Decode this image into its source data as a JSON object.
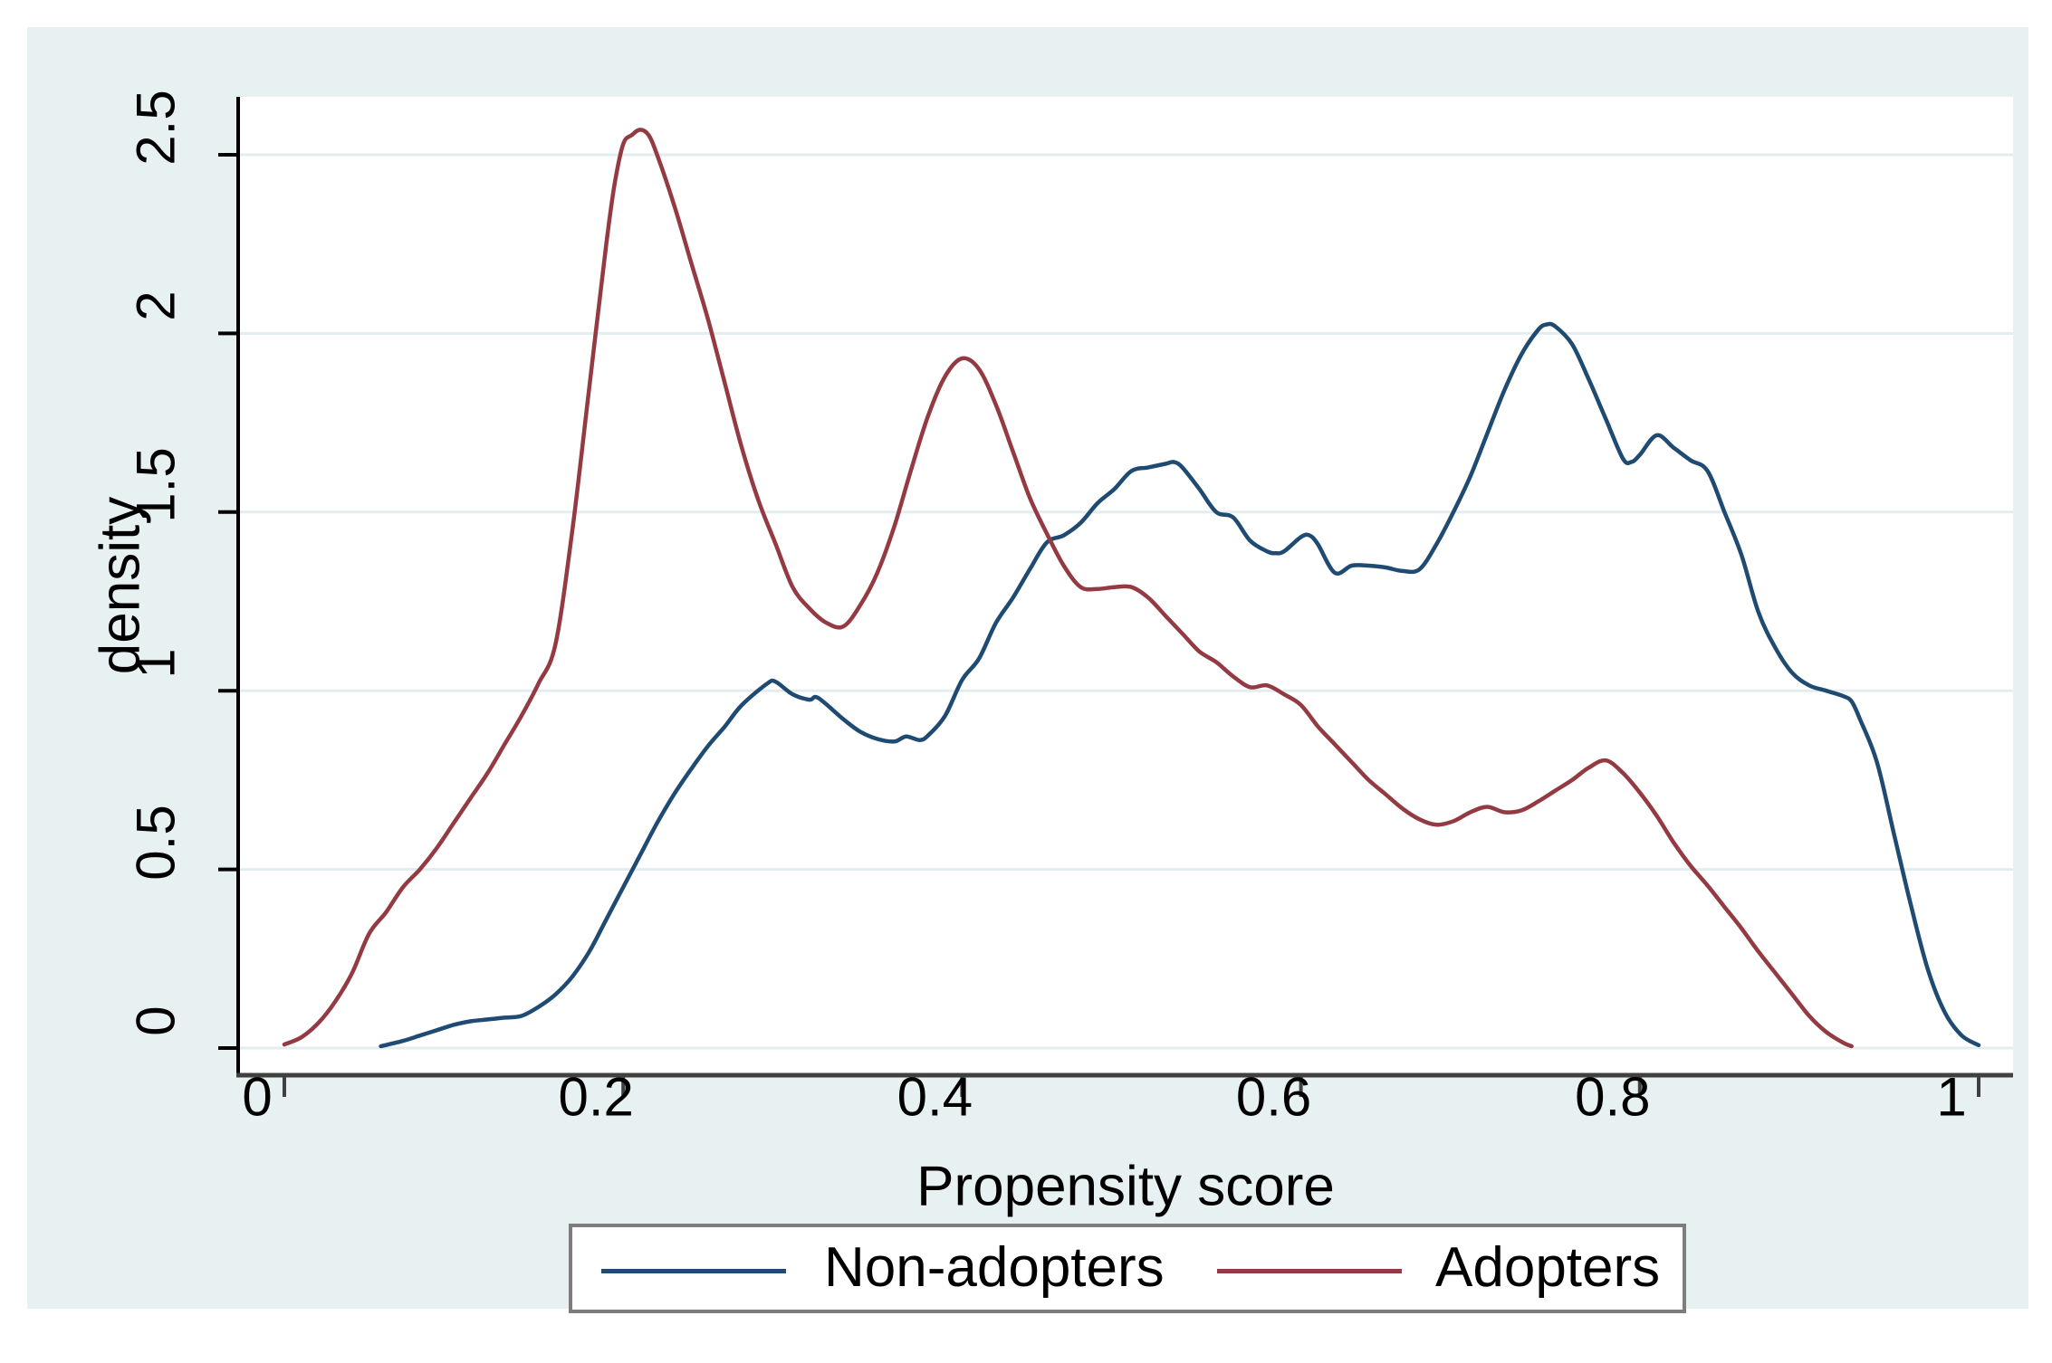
{
  "figure": {
    "xlabel": "Propensity score",
    "ylabel": "density"
  },
  "legend": {
    "items": [
      {
        "label": "Non-adopters",
        "color": "#1f4a72"
      },
      {
        "label": "Adopters",
        "color": "#943a42"
      }
    ]
  },
  "colors": {
    "canvas_bg": "#e8f1f2",
    "plot_bg": "#ffffff",
    "gridline": "#e3edf0",
    "y_axis": "#000000",
    "x_axis": "#404040",
    "text": "#000000",
    "legend_border": "#7d7d7d"
  },
  "chart_data": {
    "type": "line",
    "title": "",
    "xlabel": "Propensity score",
    "ylabel": "density",
    "xlim": [
      0,
      1
    ],
    "ylim": [
      0,
      2.5
    ],
    "grid": true,
    "legend_position": "bottom",
    "x_ticks": {
      "values": [
        0,
        0.2,
        0.4,
        0.6,
        0.8,
        1
      ],
      "labels": [
        "0",
        "0.2",
        "0.4",
        "0.6",
        "0.8",
        "1"
      ]
    },
    "y_ticks": {
      "values": [
        0,
        0.5,
        1,
        1.5,
        2,
        2.5
      ],
      "labels": [
        "0",
        "0.5",
        "1",
        "1.5",
        "2",
        "2.5"
      ]
    },
    "series": [
      {
        "name": "Non-adopters",
        "color": "#1f4a72",
        "points": [
          [
            0.057,
            0.005
          ],
          [
            0.07,
            0.02
          ],
          [
            0.08,
            0.035
          ],
          [
            0.09,
            0.05
          ],
          [
            0.1,
            0.065
          ],
          [
            0.11,
            0.075
          ],
          [
            0.12,
            0.08
          ],
          [
            0.13,
            0.085
          ],
          [
            0.14,
            0.09
          ],
          [
            0.15,
            0.115
          ],
          [
            0.16,
            0.15
          ],
          [
            0.17,
            0.2
          ],
          [
            0.18,
            0.27
          ],
          [
            0.19,
            0.36
          ],
          [
            0.2,
            0.45
          ],
          [
            0.21,
            0.54
          ],
          [
            0.22,
            0.63
          ],
          [
            0.23,
            0.71
          ],
          [
            0.24,
            0.78
          ],
          [
            0.25,
            0.845
          ],
          [
            0.26,
            0.9
          ],
          [
            0.27,
            0.96
          ],
          [
            0.285,
            1.02
          ],
          [
            0.29,
            1.025
          ],
          [
            0.3,
            0.99
          ],
          [
            0.31,
            0.975
          ],
          [
            0.315,
            0.98
          ],
          [
            0.33,
            0.92
          ],
          [
            0.34,
            0.885
          ],
          [
            0.35,
            0.865
          ],
          [
            0.36,
            0.858
          ],
          [
            0.367,
            0.872
          ],
          [
            0.375,
            0.862
          ],
          [
            0.38,
            0.875
          ],
          [
            0.39,
            0.93
          ],
          [
            0.4,
            1.03
          ],
          [
            0.41,
            1.09
          ],
          [
            0.42,
            1.19
          ],
          [
            0.43,
            1.26
          ],
          [
            0.44,
            1.34
          ],
          [
            0.45,
            1.415
          ],
          [
            0.46,
            1.435
          ],
          [
            0.47,
            1.47
          ],
          [
            0.48,
            1.525
          ],
          [
            0.49,
            1.565
          ],
          [
            0.5,
            1.615
          ],
          [
            0.51,
            1.625
          ],
          [
            0.52,
            1.635
          ],
          [
            0.525,
            1.64
          ],
          [
            0.53,
            1.625
          ],
          [
            0.54,
            1.565
          ],
          [
            0.55,
            1.5
          ],
          [
            0.56,
            1.485
          ],
          [
            0.57,
            1.42
          ],
          [
            0.58,
            1.39
          ],
          [
            0.585,
            1.385
          ],
          [
            0.59,
            1.39
          ],
          [
            0.6,
            1.43
          ],
          [
            0.605,
            1.435
          ],
          [
            0.61,
            1.41
          ],
          [
            0.62,
            1.33
          ],
          [
            0.63,
            1.35
          ],
          [
            0.64,
            1.35
          ],
          [
            0.65,
            1.345
          ],
          [
            0.66,
            1.335
          ],
          [
            0.67,
            1.34
          ],
          [
            0.68,
            1.41
          ],
          [
            0.69,
            1.5
          ],
          [
            0.7,
            1.6
          ],
          [
            0.71,
            1.72
          ],
          [
            0.72,
            1.84
          ],
          [
            0.73,
            1.94
          ],
          [
            0.74,
            2.01
          ],
          [
            0.745,
            2.025
          ],
          [
            0.75,
            2.02
          ],
          [
            0.76,
            1.97
          ],
          [
            0.77,
            1.87
          ],
          [
            0.78,
            1.76
          ],
          [
            0.79,
            1.65
          ],
          [
            0.795,
            1.64
          ],
          [
            0.8,
            1.66
          ],
          [
            0.81,
            1.715
          ],
          [
            0.82,
            1.68
          ],
          [
            0.83,
            1.645
          ],
          [
            0.84,
            1.615
          ],
          [
            0.85,
            1.5
          ],
          [
            0.86,
            1.38
          ],
          [
            0.87,
            1.22
          ],
          [
            0.88,
            1.12
          ],
          [
            0.89,
            1.05
          ],
          [
            0.9,
            1.015
          ],
          [
            0.91,
            1.0
          ],
          [
            0.92,
            0.985
          ],
          [
            0.925,
            0.97
          ],
          [
            0.93,
            0.92
          ],
          [
            0.94,
            0.8
          ],
          [
            0.95,
            0.6
          ],
          [
            0.96,
            0.4
          ],
          [
            0.97,
            0.22
          ],
          [
            0.98,
            0.1
          ],
          [
            0.99,
            0.035
          ],
          [
            1.0,
            0.008
          ]
        ]
      },
      {
        "name": "Adopters",
        "color": "#943a42",
        "points": [
          [
            0.0,
            0.01
          ],
          [
            0.01,
            0.03
          ],
          [
            0.02,
            0.07
          ],
          [
            0.03,
            0.13
          ],
          [
            0.04,
            0.21
          ],
          [
            0.05,
            0.32
          ],
          [
            0.06,
            0.38
          ],
          [
            0.07,
            0.45
          ],
          [
            0.08,
            0.5
          ],
          [
            0.09,
            0.56
          ],
          [
            0.1,
            0.63
          ],
          [
            0.11,
            0.7
          ],
          [
            0.12,
            0.77
          ],
          [
            0.13,
            0.85
          ],
          [
            0.14,
            0.93
          ],
          [
            0.15,
            1.02
          ],
          [
            0.16,
            1.13
          ],
          [
            0.17,
            1.45
          ],
          [
            0.18,
            1.85
          ],
          [
            0.19,
            2.25
          ],
          [
            0.195,
            2.42
          ],
          [
            0.2,
            2.53
          ],
          [
            0.205,
            2.555
          ],
          [
            0.21,
            2.57
          ],
          [
            0.215,
            2.555
          ],
          [
            0.22,
            2.5
          ],
          [
            0.23,
            2.36
          ],
          [
            0.24,
            2.2
          ],
          [
            0.25,
            2.04
          ],
          [
            0.26,
            1.86
          ],
          [
            0.27,
            1.68
          ],
          [
            0.28,
            1.53
          ],
          [
            0.29,
            1.41
          ],
          [
            0.3,
            1.29
          ],
          [
            0.31,
            1.23
          ],
          [
            0.32,
            1.19
          ],
          [
            0.33,
            1.18
          ],
          [
            0.34,
            1.24
          ],
          [
            0.35,
            1.33
          ],
          [
            0.36,
            1.46
          ],
          [
            0.37,
            1.62
          ],
          [
            0.38,
            1.77
          ],
          [
            0.39,
            1.88
          ],
          [
            0.4,
            1.93
          ],
          [
            0.41,
            1.9
          ],
          [
            0.42,
            1.8
          ],
          [
            0.43,
            1.67
          ],
          [
            0.44,
            1.54
          ],
          [
            0.45,
            1.44
          ],
          [
            0.46,
            1.35
          ],
          [
            0.47,
            1.29
          ],
          [
            0.48,
            1.285
          ],
          [
            0.49,
            1.29
          ],
          [
            0.5,
            1.29
          ],
          [
            0.51,
            1.26
          ],
          [
            0.52,
            1.21
          ],
          [
            0.53,
            1.16
          ],
          [
            0.54,
            1.11
          ],
          [
            0.55,
            1.08
          ],
          [
            0.56,
            1.04
          ],
          [
            0.57,
            1.01
          ],
          [
            0.58,
            1.015
          ],
          [
            0.59,
            0.99
          ],
          [
            0.6,
            0.96
          ],
          [
            0.61,
            0.9
          ],
          [
            0.62,
            0.85
          ],
          [
            0.63,
            0.8
          ],
          [
            0.64,
            0.75
          ],
          [
            0.65,
            0.71
          ],
          [
            0.66,
            0.67
          ],
          [
            0.67,
            0.64
          ],
          [
            0.68,
            0.625
          ],
          [
            0.69,
            0.635
          ],
          [
            0.7,
            0.66
          ],
          [
            0.71,
            0.675
          ],
          [
            0.72,
            0.66
          ],
          [
            0.73,
            0.665
          ],
          [
            0.74,
            0.69
          ],
          [
            0.75,
            0.72
          ],
          [
            0.76,
            0.75
          ],
          [
            0.77,
            0.785
          ],
          [
            0.78,
            0.805
          ],
          [
            0.79,
            0.77
          ],
          [
            0.8,
            0.715
          ],
          [
            0.81,
            0.65
          ],
          [
            0.82,
            0.575
          ],
          [
            0.83,
            0.51
          ],
          [
            0.84,
            0.455
          ],
          [
            0.85,
            0.395
          ],
          [
            0.86,
            0.335
          ],
          [
            0.87,
            0.27
          ],
          [
            0.88,
            0.21
          ],
          [
            0.89,
            0.15
          ],
          [
            0.9,
            0.09
          ],
          [
            0.91,
            0.045
          ],
          [
            0.92,
            0.015
          ],
          [
            0.925,
            0.005
          ]
        ]
      }
    ]
  }
}
